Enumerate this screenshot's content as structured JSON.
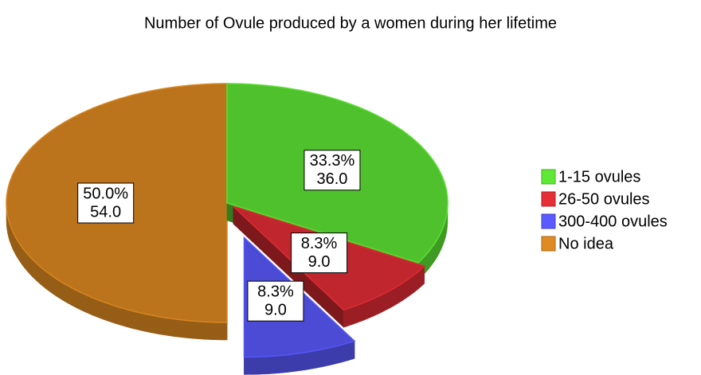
{
  "chart_data": {
    "type": "pie3d",
    "title": "Number of Ovule produced by a women during her lifetime",
    "categories": [
      "1-15 ovules",
      "26-50 ovules",
      "300-400 ovules",
      "No idea"
    ],
    "values": [
      36,
      9,
      9,
      54
    ],
    "value_labels": [
      "36.0",
      "9.0",
      "9.0",
      "54.0"
    ],
    "percent_labels": [
      "33.3%",
      "8.3%",
      "8.3%",
      "50.0%"
    ],
    "colors": [
      "#4fc12c",
      "#c0262d",
      "#4b4bd6",
      "#bb741c"
    ],
    "exploded": [
      false,
      true,
      true,
      false
    ],
    "legend": "right"
  }
}
